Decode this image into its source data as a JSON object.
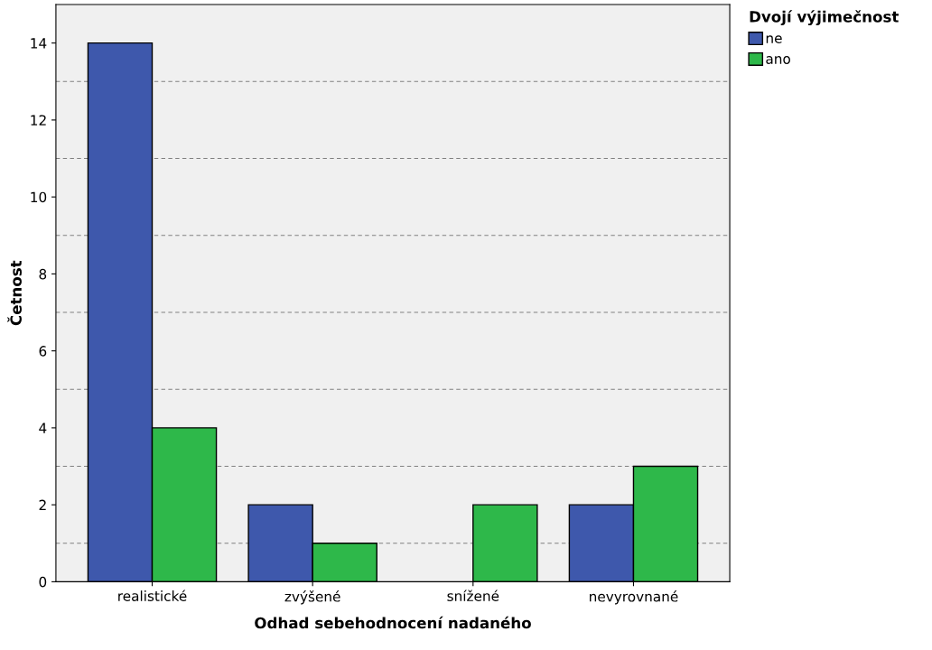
{
  "chart_data": {
    "type": "bar",
    "xlabel": "Odhad sebehodnocení nadaného",
    "ylabel": "Četnost",
    "legend_title": "Dvojí výjimečnost",
    "categories": [
      "realistické",
      "zvýšené",
      "snížené",
      "nevyrovnané"
    ],
    "series": [
      {
        "name": "ne",
        "color": "#3e58ac",
        "values": [
          14,
          2,
          0,
          2
        ]
      },
      {
        "name": "ano",
        "color": "#2eb84a",
        "values": [
          4,
          1,
          2,
          3
        ]
      }
    ],
    "ylim": [
      0,
      15
    ],
    "yticks": [
      0,
      2,
      4,
      6,
      8,
      10,
      12,
      14
    ],
    "grid": false,
    "legend": "top right",
    "ref_lines": [
      {
        "axis": "y",
        "value": 1,
        "color": "#808080",
        "line_style": "dashed"
      },
      {
        "axis": "y",
        "value": 3,
        "color": "#808080",
        "line_style": "dashed"
      },
      {
        "axis": "y",
        "value": 5,
        "color": "#808080",
        "line_style": "dashed"
      },
      {
        "axis": "y",
        "value": 7,
        "color": "#808080",
        "line_style": "dashed"
      },
      {
        "axis": "y",
        "value": 9,
        "color": "#808080",
        "line_style": "dashed"
      },
      {
        "axis": "y",
        "value": 11,
        "color": "#808080",
        "line_style": "dashed"
      },
      {
        "axis": "y",
        "value": 13,
        "color": "#808080",
        "line_style": "dashed"
      }
    ]
  }
}
